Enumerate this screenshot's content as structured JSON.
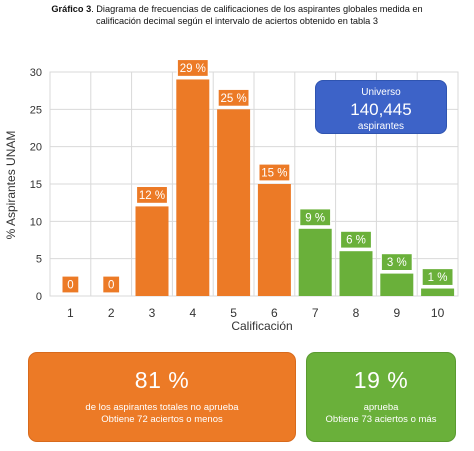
{
  "title": {
    "bold": "Gráfico 3",
    "text": ". Diagrama de frecuencias de calificaciones de los aspirantes globales medida en",
    "line2": "calificación decimal según el intervalo de aciertos obtenido en tabla 3"
  },
  "colors": {
    "fail": "#ec7a26",
    "pass": "#6ab03a",
    "universe": "#3d63c8",
    "grid": "#d9d9d9"
  },
  "chart_data": {
    "type": "bar",
    "categories": [
      "1",
      "2",
      "3",
      "4",
      "5",
      "6",
      "7",
      "8",
      "9",
      "10"
    ],
    "values": [
      0,
      0,
      12,
      29,
      25,
      15,
      9,
      6,
      3,
      1
    ],
    "labels": [
      "0",
      "0",
      "12 %",
      "29 %",
      "25 %",
      "15 %",
      "9 %",
      "6 %",
      "3 %",
      "1 %"
    ],
    "groups": [
      "fail",
      "fail",
      "fail",
      "fail",
      "fail",
      "fail",
      "pass",
      "pass",
      "pass",
      "pass"
    ],
    "xlabel": "Calificación",
    "ylabel": "% Aspirantes UNAM",
    "ylim": [
      0,
      30
    ],
    "yticks": [
      0,
      5,
      10,
      15,
      20,
      25,
      30
    ],
    "grid": true
  },
  "universe": {
    "label": "Universo",
    "value": "140,445",
    "unit": "aspirantes"
  },
  "summary": {
    "fail": {
      "percent": "81 %",
      "line1": "de los aspirantes totales no aprueba",
      "line2": "Obtiene 72 aciertos o menos"
    },
    "pass": {
      "percent": "19 %",
      "line1": "aprueba",
      "line2": "Obtiene 73 aciertos o más"
    }
  }
}
